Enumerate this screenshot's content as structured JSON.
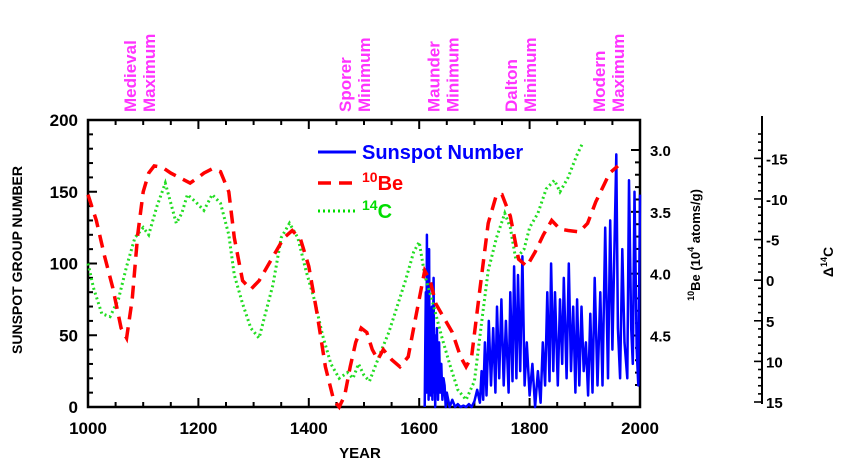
{
  "chart_data": {
    "type": "line",
    "xlabel": "YEAR",
    "ylabel": "SUNSPOT GROUP NUMBER",
    "y2label_prefix": "10",
    "y2label_rest": "Be (10",
    "y2label_exp": "4",
    "y2label_tail": " atoms/g)",
    "y3label_prefix": "Δ",
    "y3label_super": "14",
    "y3label_rest": "C",
    "xlim": [
      1000,
      2000
    ],
    "ylim": [
      0,
      200
    ],
    "be_lim": [
      3.0,
      4.9
    ],
    "c14_lim": [
      -18,
      15
    ],
    "x_ticks": [
      "1000",
      "1200",
      "1400",
      "1600",
      "1800",
      "2000"
    ],
    "y_ticks": [
      "0",
      "50",
      "100",
      "150",
      "200"
    ],
    "be_ticks": [
      "3.0",
      "3.5",
      "4.0",
      "4.5"
    ],
    "c14_ticks": [
      "-15",
      "-10",
      "-5",
      "0",
      "5",
      "10",
      "15"
    ],
    "periods": [
      {
        "line1": "Medieval",
        "line2": "Maximum",
        "year": 1105
      },
      {
        "line1": "Sporer",
        "line2": "Minimum",
        "year": 1495
      },
      {
        "line1": "Maunder",
        "line2": "Minimum",
        "year": 1655
      },
      {
        "line1": "Dalton",
        "line2": "Minimum",
        "year": 1795
      },
      {
        "line1": "Modern",
        "line2": "Maximum",
        "year": 1955
      }
    ],
    "legend": [
      {
        "label": "Sunspot Number",
        "sup": "",
        "color": "#0000ff",
        "dash": "solid"
      },
      {
        "label": "Be",
        "sup": "10",
        "color": "#ff0000",
        "dash": "dashed"
      },
      {
        "label": "C",
        "sup": "14",
        "color": "#00dd00",
        "dash": "dotted"
      }
    ],
    "series": [
      {
        "key": "c14",
        "color": "#22dd22",
        "points": [
          [
            1000,
            100
          ],
          [
            1010,
            83
          ],
          [
            1025,
            65
          ],
          [
            1040,
            63
          ],
          [
            1055,
            75
          ],
          [
            1070,
            98
          ],
          [
            1085,
            118
          ],
          [
            1100,
            125
          ],
          [
            1110,
            120
          ],
          [
            1125,
            140
          ],
          [
            1140,
            156
          ],
          [
            1150,
            142
          ],
          [
            1160,
            128
          ],
          [
            1170,
            135
          ],
          [
            1180,
            148
          ],
          [
            1195,
            143
          ],
          [
            1210,
            137
          ],
          [
            1225,
            148
          ],
          [
            1240,
            142
          ],
          [
            1255,
            120
          ],
          [
            1265,
            92
          ],
          [
            1280,
            72
          ],
          [
            1295,
            55
          ],
          [
            1310,
            48
          ],
          [
            1320,
            63
          ],
          [
            1335,
            85
          ],
          [
            1350,
            118
          ],
          [
            1365,
            128
          ],
          [
            1380,
            118
          ],
          [
            1395,
            95
          ],
          [
            1410,
            75
          ],
          [
            1425,
            50
          ],
          [
            1440,
            30
          ],
          [
            1455,
            20
          ],
          [
            1470,
            24
          ],
          [
            1480,
            20
          ],
          [
            1490,
            30
          ],
          [
            1500,
            22
          ],
          [
            1510,
            18
          ],
          [
            1520,
            28
          ],
          [
            1530,
            38
          ],
          [
            1545,
            52
          ],
          [
            1560,
            70
          ],
          [
            1575,
            88
          ],
          [
            1590,
            108
          ],
          [
            1600,
            115
          ],
          [
            1610,
            92
          ],
          [
            1625,
            72
          ],
          [
            1640,
            50
          ],
          [
            1655,
            30
          ],
          [
            1670,
            12
          ],
          [
            1685,
            5
          ],
          [
            1700,
            18
          ],
          [
            1715,
            65
          ],
          [
            1725,
            95
          ],
          [
            1740,
            118
          ],
          [
            1755,
            135
          ],
          [
            1765,
            125
          ],
          [
            1775,
            103
          ],
          [
            1790,
            110
          ],
          [
            1800,
            125
          ],
          [
            1815,
            135
          ],
          [
            1830,
            152
          ],
          [
            1845,
            158
          ],
          [
            1855,
            150
          ],
          [
            1870,
            160
          ],
          [
            1885,
            175
          ],
          [
            1895,
            183
          ]
        ]
      },
      {
        "key": "be10",
        "color": "#ff0000",
        "points": [
          [
            1000,
            148
          ],
          [
            1015,
            130
          ],
          [
            1030,
            105
          ],
          [
            1045,
            83
          ],
          [
            1060,
            55
          ],
          [
            1070,
            48
          ],
          [
            1080,
            75
          ],
          [
            1090,
            120
          ],
          [
            1100,
            150
          ],
          [
            1110,
            163
          ],
          [
            1120,
            168
          ],
          [
            1135,
            167
          ],
          [
            1150,
            163
          ],
          [
            1165,
            160
          ],
          [
            1185,
            156
          ],
          [
            1200,
            160
          ],
          [
            1210,
            163
          ],
          [
            1225,
            166
          ],
          [
            1240,
            164
          ],
          [
            1255,
            150
          ],
          [
            1265,
            118
          ],
          [
            1280,
            88
          ],
          [
            1295,
            82
          ],
          [
            1310,
            88
          ],
          [
            1325,
            98
          ],
          [
            1340,
            108
          ],
          [
            1355,
            118
          ],
          [
            1370,
            123
          ],
          [
            1385,
            117
          ],
          [
            1400,
            98
          ],
          [
            1415,
            65
          ],
          [
            1430,
            28
          ],
          [
            1445,
            5
          ],
          [
            1455,
            0
          ],
          [
            1465,
            8
          ],
          [
            1475,
            28
          ],
          [
            1485,
            45
          ],
          [
            1495,
            55
          ],
          [
            1505,
            52
          ],
          [
            1515,
            40
          ],
          [
            1525,
            33
          ],
          [
            1535,
            40
          ],
          [
            1550,
            33
          ],
          [
            1565,
            28
          ],
          [
            1580,
            35
          ],
          [
            1595,
            65
          ],
          [
            1610,
            95
          ],
          [
            1620,
            88
          ],
          [
            1630,
            72
          ],
          [
            1645,
            62
          ],
          [
            1660,
            52
          ],
          [
            1675,
            35
          ],
          [
            1685,
            28
          ],
          [
            1695,
            35
          ],
          [
            1710,
            82
          ],
          [
            1725,
            128
          ],
          [
            1740,
            148
          ],
          [
            1750,
            148
          ],
          [
            1765,
            133
          ],
          [
            1780,
            103
          ],
          [
            1795,
            98
          ],
          [
            1810,
            108
          ],
          [
            1825,
            120
          ],
          [
            1840,
            130
          ],
          [
            1855,
            124
          ],
          [
            1870,
            123
          ],
          [
            1890,
            122
          ],
          [
            1905,
            128
          ],
          [
            1920,
            143
          ],
          [
            1935,
            155
          ],
          [
            1945,
            163
          ],
          [
            1960,
            168
          ]
        ]
      }
    ],
    "sunspot": {
      "color": "#0000ff",
      "points": [
        [
          1610,
          0
        ],
        [
          1611,
          45
        ],
        [
          1612,
          80
        ],
        [
          1613,
          10
        ],
        [
          1614,
          120
        ],
        [
          1615,
          30
        ],
        [
          1616,
          85
        ],
        [
          1617,
          5
        ],
        [
          1618,
          110
        ],
        [
          1619,
          20
        ],
        [
          1620,
          65
        ],
        [
          1621,
          8
        ],
        [
          1622,
          40
        ],
        [
          1623,
          70
        ],
        [
          1624,
          5
        ],
        [
          1625,
          35
        ],
        [
          1626,
          90
        ],
        [
          1627,
          10
        ],
        [
          1628,
          50
        ],
        [
          1629,
          0
        ],
        [
          1630,
          30
        ],
        [
          1632,
          55
        ],
        [
          1634,
          5
        ],
        [
          1636,
          45
        ],
        [
          1638,
          10
        ],
        [
          1640,
          30
        ],
        [
          1642,
          5
        ],
        [
          1644,
          20
        ],
        [
          1646,
          15
        ],
        [
          1648,
          0
        ],
        [
          1650,
          10
        ],
        [
          1655,
          0
        ],
        [
          1660,
          5
        ],
        [
          1665,
          0
        ],
        [
          1670,
          2
        ],
        [
          1675,
          0
        ],
        [
          1680,
          1
        ],
        [
          1685,
          0
        ],
        [
          1690,
          2
        ],
        [
          1695,
          0
        ],
        [
          1700,
          4
        ],
        [
          1705,
          12
        ],
        [
          1710,
          3
        ],
        [
          1713,
          25
        ],
        [
          1716,
          5
        ],
        [
          1719,
          45
        ],
        [
          1722,
          8
        ],
        [
          1726,
          60
        ],
        [
          1730,
          15
        ],
        [
          1734,
          55
        ],
        [
          1738,
          10
        ],
        [
          1741,
          70
        ],
        [
          1745,
          20
        ],
        [
          1749,
          75
        ],
        [
          1753,
          15
        ],
        [
          1757,
          60
        ],
        [
          1762,
          10
        ],
        [
          1765,
          80
        ],
        [
          1769,
          18
        ],
        [
          1772,
          98
        ],
        [
          1776,
          20
        ],
        [
          1779,
          92
        ],
        [
          1783,
          25
        ],
        [
          1787,
          105
        ],
        [
          1791,
          15
        ],
        [
          1795,
          45
        ],
        [
          1800,
          8
        ],
        [
          1805,
          30
        ],
        [
          1810,
          0
        ],
        [
          1815,
          25
        ],
        [
          1820,
          3
        ],
        [
          1824,
          45
        ],
        [
          1828,
          15
        ],
        [
          1832,
          80
        ],
        [
          1836,
          18
        ],
        [
          1839,
          100
        ],
        [
          1843,
          25
        ],
        [
          1846,
          80
        ],
        [
          1851,
          15
        ],
        [
          1855,
          75
        ],
        [
          1859,
          30
        ],
        [
          1862,
          90
        ],
        [
          1867,
          20
        ],
        [
          1871,
          100
        ],
        [
          1875,
          25
        ],
        [
          1879,
          70
        ],
        [
          1883,
          10
        ],
        [
          1886,
          75
        ],
        [
          1890,
          15
        ],
        [
          1894,
          70
        ],
        [
          1898,
          25
        ],
        [
          1902,
          45
        ],
        [
          1906,
          8
        ],
        [
          1910,
          65
        ],
        [
          1914,
          10
        ],
        [
          1918,
          90
        ],
        [
          1923,
          15
        ],
        [
          1928,
          80
        ],
        [
          1932,
          15
        ],
        [
          1937,
          125
        ],
        [
          1942,
          20
        ],
        [
          1946,
          130
        ],
        [
          1950,
          40
        ],
        [
          1957,
          176
        ],
        [
          1960,
          55
        ],
        [
          1964,
          20
        ],
        [
          1968,
          110
        ],
        [
          1972,
          45
        ],
        [
          1977,
          20
        ],
        [
          1980,
          158
        ],
        [
          1984,
          55
        ],
        [
          1987,
          30
        ],
        [
          1990,
          150
        ],
        [
          1994,
          40
        ],
        [
          1997,
          15
        ],
        [
          2000,
          148
        ]
      ]
    }
  }
}
